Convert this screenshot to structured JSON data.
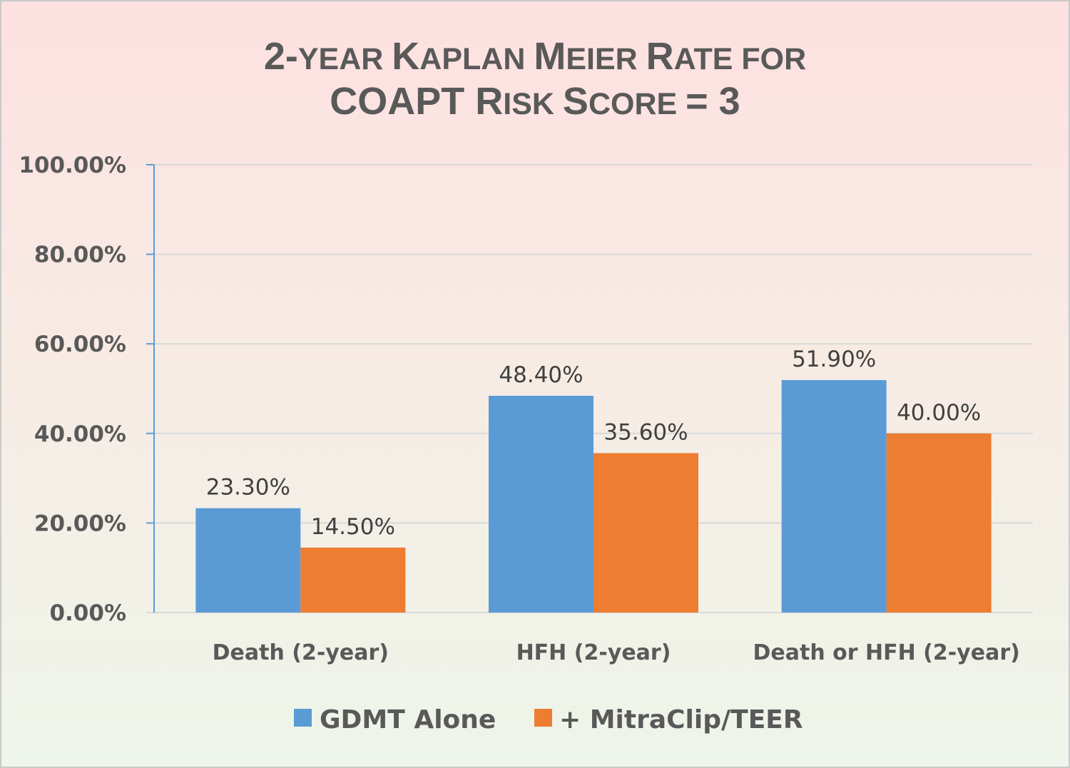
{
  "chart_data": {
    "type": "bar",
    "title_lines": [
      [
        {
          "text": "2-",
          "big": true
        },
        {
          "text": "YEAR ",
          "big": false
        },
        {
          "text": "K",
          "big": true
        },
        {
          "text": "APLAN ",
          "big": false
        },
        {
          "text": "M",
          "big": true
        },
        {
          "text": "EIER ",
          "big": false
        },
        {
          "text": "R",
          "big": true
        },
        {
          "text": "ATE FOR",
          "big": false
        }
      ],
      [
        {
          "text": "COAPT R",
          "big": true
        },
        {
          "text": "ISK ",
          "big": false
        },
        {
          "text": "S",
          "big": true
        },
        {
          "text": "CORE ",
          "big": false
        },
        {
          "text": "= 3",
          "big": true
        }
      ]
    ],
    "categories": [
      "Death (2-year)",
      "HFH (2-year)",
      "Death or HFH (2-year)"
    ],
    "series": [
      {
        "name": "GDMT Alone",
        "color": "#5b9bd5",
        "values": [
          23.3,
          48.4,
          51.9
        ],
        "labels": [
          "23.30%",
          "48.40%",
          "51.90%"
        ]
      },
      {
        "name": "+ MitraClip/TEER",
        "color": "#ed7d31",
        "values": [
          14.5,
          35.6,
          40.0
        ],
        "labels": [
          "14.50%",
          "35.60%",
          "40.00%"
        ]
      }
    ],
    "ylim": [
      0,
      100
    ],
    "yticks": [
      0,
      20,
      40,
      60,
      80,
      100
    ],
    "ytick_labels": [
      "0.00%",
      "20.00%",
      "40.00%",
      "60.00%",
      "80.00%",
      "100.00%"
    ],
    "grid": true,
    "legend_position": "bottom",
    "colors": {
      "axis": "#5b9bd5",
      "grid": "#d9d9d9",
      "text": "#595959"
    }
  }
}
